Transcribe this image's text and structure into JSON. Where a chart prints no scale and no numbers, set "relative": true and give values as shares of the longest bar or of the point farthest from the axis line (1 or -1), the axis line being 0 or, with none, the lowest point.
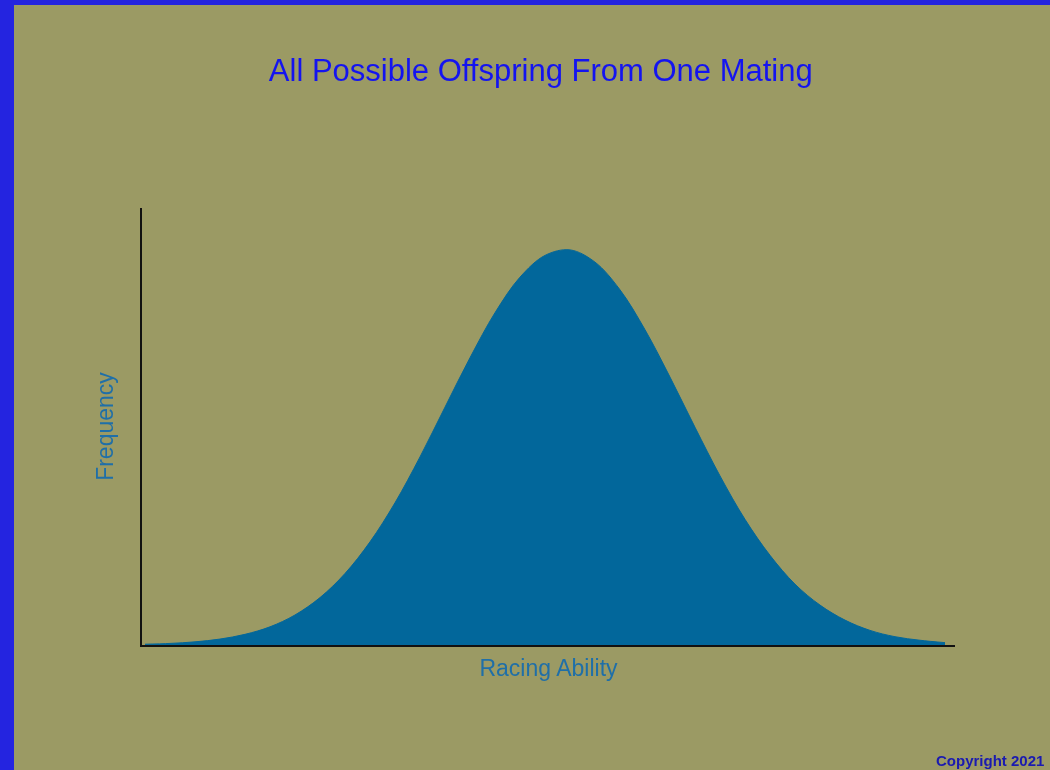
{
  "chart_data": {
    "type": "area",
    "relative": true,
    "title": "All Possible Offspring From One Mating",
    "xlabel": "Racing Ability",
    "ylabel": "Frequency",
    "tick_labels": false,
    "categories": [
      null,
      null,
      null,
      null,
      null,
      null,
      null,
      null,
      null,
      null,
      null,
      null,
      null,
      null,
      null,
      null,
      null,
      null,
      null,
      null,
      null,
      null,
      null,
      null,
      null,
      null,
      null,
      null,
      null,
      null,
      null,
      null,
      null
    ],
    "series": [
      {
        "color": "#02679b",
        "values": [
          0.002,
          0.004,
          0.008,
          0.015,
          0.027,
          0.046,
          0.076,
          0.12,
          0.181,
          0.261,
          0.36,
          0.476,
          0.602,
          0.727,
          0.841,
          0.931,
          0.986,
          1,
          0.969,
          0.899,
          0.798,
          0.678,
          0.551,
          0.428,
          0.318,
          0.227,
          0.154,
          0.101,
          0.063,
          0.037,
          0.021,
          0.012,
          0.006
        ]
      }
    ],
    "annotations": [
      "Copyright 2021"
    ]
  }
}
